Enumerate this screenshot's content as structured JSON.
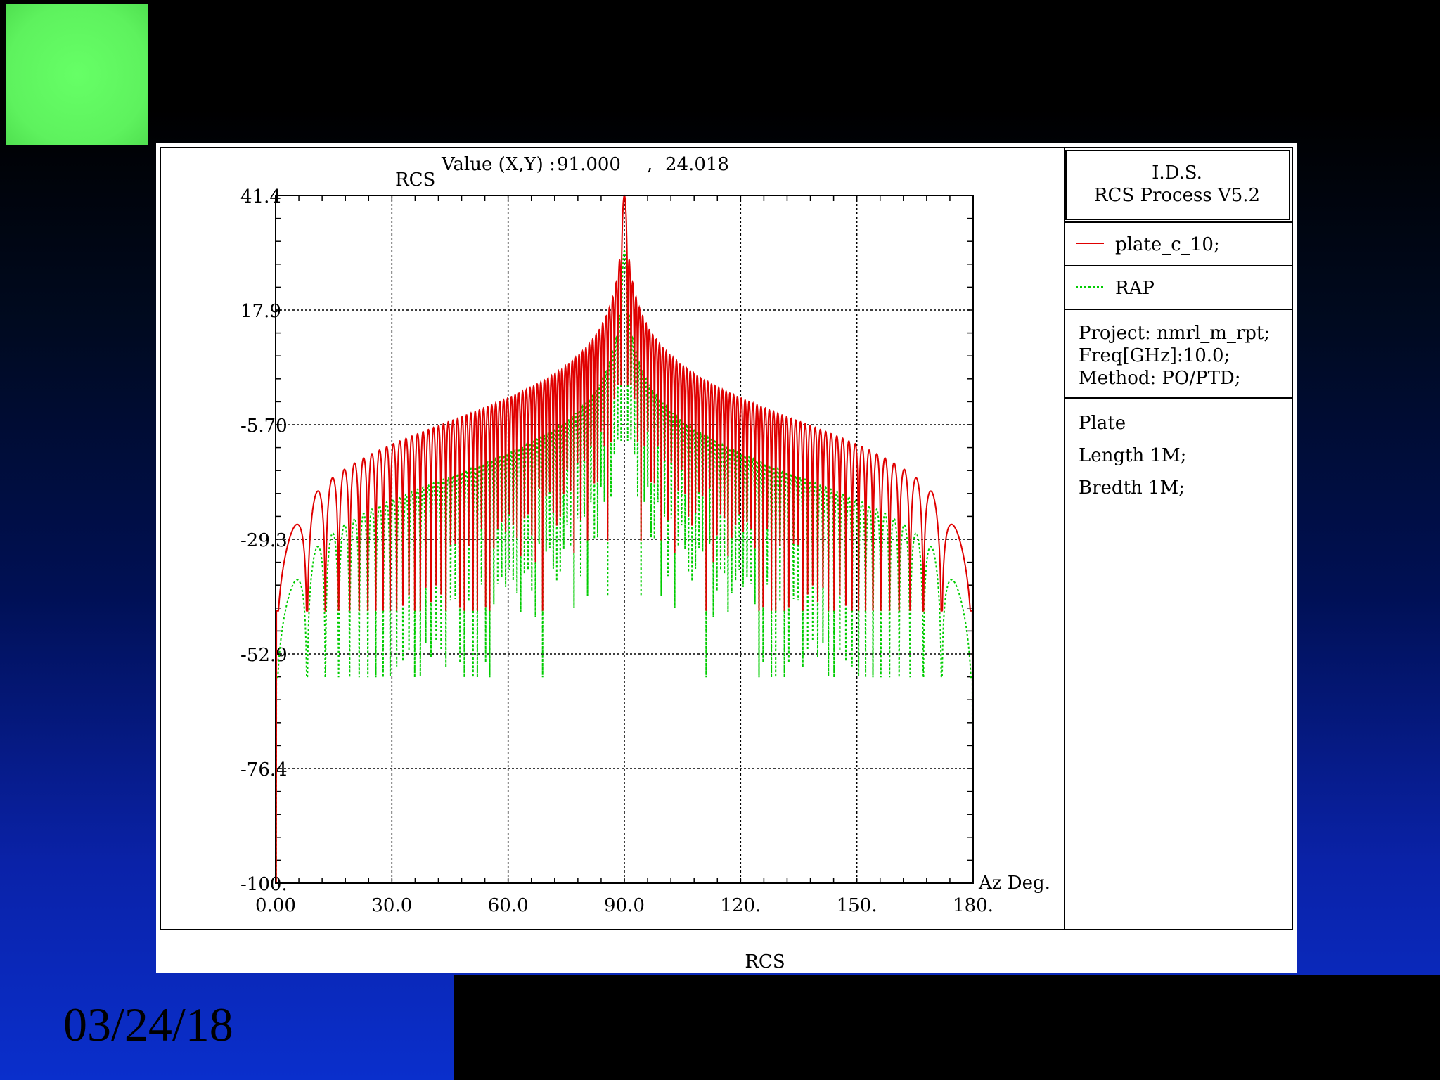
{
  "slide": {
    "date": "03/24/18"
  },
  "header": {
    "app_name": "I.D.S.",
    "app_version": "RCS Process V5.2"
  },
  "readout": {
    "label": "Value (X,Y) :",
    "x": "91.000",
    "sep": ",",
    "y": "24.018"
  },
  "info": {
    "project": "Project: nmrl_m_rpt;",
    "freq": "Freq[GHz]:10.0;",
    "method": "Method: PO/PTD;",
    "object": "Plate",
    "length": "Length 1M;",
    "breadth": "Bredth 1M;"
  },
  "colors": {
    "series1": "#e00000",
    "series2": "#00cc00"
  },
  "chart_data": {
    "type": "line",
    "title": "",
    "ylabel": "RCS",
    "xlabel": "Az Deg.",
    "bottom_label": "RCS",
    "xlim": [
      0,
      180
    ],
    "ylim": [
      -100,
      41.4
    ],
    "xticks": [
      "0.00",
      "30.0",
      "60.0",
      "90.0",
      "120.",
      "150.",
      "180."
    ],
    "yticks": [
      "41.4",
      "17.9",
      "-5.70",
      "-29.3",
      "-52.9",
      "-76.4",
      "-100."
    ],
    "grid": true,
    "legend_position": "right",
    "series": [
      {
        "name": "plate_c_10;",
        "style": "solid",
        "color": "#e00000",
        "peak": [
          90,
          41.4
        ],
        "floor_db": -100,
        "offset_db": 0,
        "wavelength_m": 0.03,
        "plate_m": 1
      },
      {
        "name": "RAP",
        "style": "dotted",
        "color": "#00cc00",
        "peak": [
          90,
          30
        ],
        "floor_db": -100,
        "offset_db": -11.4,
        "wavelength_m": 0.03,
        "plate_m": 1
      }
    ]
  }
}
